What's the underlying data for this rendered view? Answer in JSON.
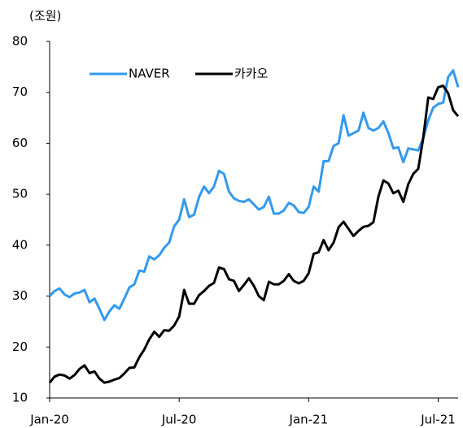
{
  "chart_data": {
    "type": "line",
    "unit_label": "(조원)",
    "categories": [
      "Jan-20",
      null,
      null,
      null,
      null,
      null,
      null,
      null,
      null,
      null,
      null,
      null,
      null,
      null,
      null,
      null,
      null,
      null,
      null,
      null,
      null,
      null,
      null,
      null,
      null,
      null,
      "Jul-20",
      null,
      null,
      null,
      null,
      null,
      null,
      null,
      null,
      null,
      null,
      null,
      null,
      null,
      null,
      null,
      null,
      null,
      null,
      null,
      null,
      null,
      null,
      null,
      null,
      null,
      "Jan-21",
      null,
      null,
      null,
      null,
      null,
      null,
      null,
      null,
      null,
      null,
      null,
      null,
      null,
      null,
      null,
      null,
      null,
      null,
      null,
      null,
      null,
      null,
      null,
      null,
      null,
      "Jul-21",
      null,
      null,
      null,
      null
    ],
    "series": [
      {
        "name": "NAVER",
        "color": "#3399ee",
        "values": [
          30,
          31,
          31.5,
          30.3,
          29.8,
          30.5,
          30.7,
          31.2,
          28.8,
          29.5,
          27.5,
          25.3,
          27,
          28.2,
          27.5,
          29.5,
          31.7,
          32.3,
          35,
          34.8,
          37.8,
          37.2,
          38,
          39.5,
          40.5,
          43.7,
          45,
          49,
          45.5,
          46,
          49.5,
          51.5,
          50.2,
          51.5,
          54.6,
          54,
          50.5,
          49.2,
          48.7,
          48.5,
          49,
          48,
          47,
          47.5,
          49.5,
          46.2,
          46.2,
          46.8,
          48.3,
          47.8,
          46.5,
          46.3,
          47.5,
          51.5,
          50.5,
          56.5,
          56.5,
          59.5,
          60,
          65.5,
          61.5,
          62,
          62.5,
          66,
          63,
          62.5,
          63,
          64.3,
          62,
          59,
          59.2,
          56.3,
          59,
          58.8,
          58.6,
          61,
          64.5,
          67,
          67.7,
          68,
          73,
          74.3,
          71
        ]
      },
      {
        "name": "카카오",
        "color": "#000000",
        "values": [
          13,
          14.2,
          14.6,
          14.4,
          13.8,
          14.5,
          15.7,
          16.4,
          14.9,
          15.2,
          13.8,
          13,
          13.2,
          13.6,
          13.9,
          14.8,
          15.9,
          16,
          18,
          19.5,
          21.5,
          23,
          22,
          23.3,
          23.2,
          24.2,
          26,
          31.2,
          28.5,
          28.5,
          30.2,
          31,
          32,
          32.6,
          35.6,
          35.3,
          33.3,
          33,
          31,
          32.2,
          33.5,
          32,
          30,
          29.2,
          32.8,
          32.3,
          32.3,
          33,
          34.3,
          33,
          32.5,
          33,
          34.5,
          38.3,
          38.6,
          41,
          39,
          40.5,
          43.5,
          44.6,
          43.2,
          41.8,
          42.8,
          43.6,
          43.8,
          44.5,
          49.5,
          52.7,
          52.1,
          50.2,
          50.7,
          48.5,
          52,
          54,
          55,
          61,
          69,
          68.7,
          71,
          71.3,
          69.8,
          66.5,
          65.3
        ]
      }
    ],
    "ylim": [
      10,
      80
    ],
    "yticks": [
      10,
      20,
      30,
      40,
      50,
      60,
      70,
      80
    ],
    "legend": "top"
  }
}
